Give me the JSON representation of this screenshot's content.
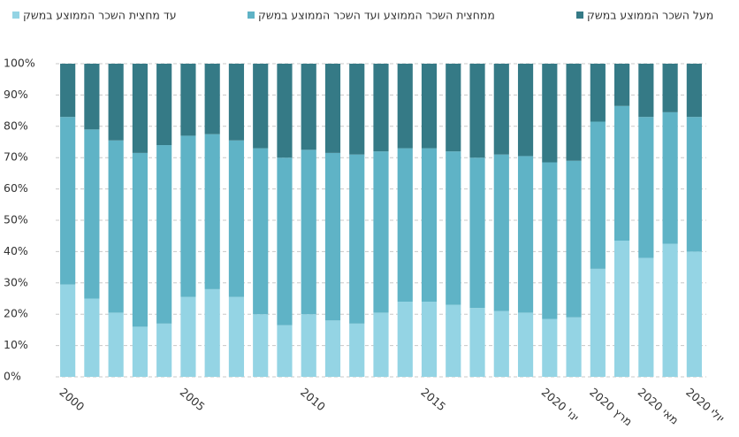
{
  "chart_data": {
    "type": "stacked-bar",
    "categories": [
      "2000",
      null,
      null,
      null,
      null,
      "2005",
      null,
      null,
      null,
      null,
      "2010",
      null,
      null,
      null,
      null,
      "2015",
      null,
      null,
      null,
      null,
      "ינו' 2020",
      null,
      "מרץ 2020",
      null,
      "מאי 2020",
      null,
      "יולי 2020"
    ],
    "series": [
      {
        "name": "עד מחצית השכר הממוצע במשק",
        "color": "#94d4e4",
        "values": [
          29.5,
          25,
          20.5,
          16,
          17,
          25.5,
          28,
          25.5,
          20,
          16.5,
          20,
          18,
          17,
          20.5,
          24,
          24,
          23,
          22,
          21,
          20.5,
          18.5,
          19,
          34.5,
          43.5,
          38,
          42.5,
          40
        ]
      },
      {
        "name": "ממחצית השכר הממוצע ועד השכר הממוצע במשק",
        "color": "#5fb3c6",
        "values": [
          53.5,
          54,
          55,
          55.5,
          57,
          51.5,
          49.5,
          50,
          53,
          53.5,
          52.5,
          53.5,
          54,
          51.5,
          49,
          49,
          49,
          48,
          50,
          50,
          50,
          50,
          47,
          43,
          45,
          42,
          43
        ]
      },
      {
        "name": "מעל השכר הממוצע במשק",
        "color": "#357a86",
        "values": [
          17,
          21,
          24.5,
          28.5,
          26,
          23,
          22.5,
          24.5,
          27,
          30,
          27.5,
          28.5,
          29,
          28,
          27,
          27,
          28,
          30,
          29,
          29.5,
          31.5,
          31,
          18.5,
          13.5,
          17,
          15.5,
          17
        ]
      }
    ],
    "ylim": [
      0,
      100
    ],
    "yticks": [
      {
        "value": 0,
        "label": "0%"
      },
      {
        "value": 10,
        "label": "10%"
      },
      {
        "value": 20,
        "label": "20%"
      },
      {
        "value": 30,
        "label": "30%"
      },
      {
        "value": 40,
        "label": "40%"
      },
      {
        "value": 50,
        "label": "50%"
      },
      {
        "value": 60,
        "label": "60%"
      },
      {
        "value": 70,
        "label": "70%"
      },
      {
        "value": 80,
        "label": "80%"
      },
      {
        "value": 90,
        "label": "90%"
      },
      {
        "value": 100,
        "label": "100%"
      }
    ],
    "grid": true,
    "legend": "top"
  }
}
